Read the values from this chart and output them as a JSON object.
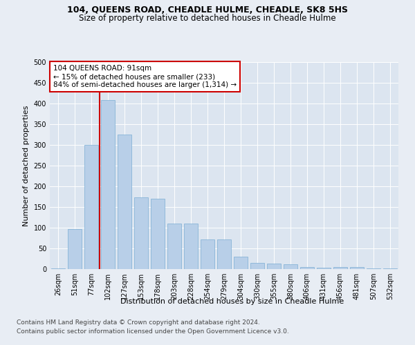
{
  "title1": "104, QUEENS ROAD, CHEADLE HULME, CHEADLE, SK8 5HS",
  "title2": "Size of property relative to detached houses in Cheadle Hulme",
  "xlabel": "Distribution of detached houses by size in Cheadle Hulme",
  "ylabel": "Number of detached properties",
  "bar_labels": [
    "26sqm",
    "51sqm",
    "77sqm",
    "102sqm",
    "127sqm",
    "153sqm",
    "178sqm",
    "203sqm",
    "228sqm",
    "254sqm",
    "279sqm",
    "304sqm",
    "330sqm",
    "355sqm",
    "380sqm",
    "406sqm",
    "431sqm",
    "456sqm",
    "481sqm",
    "507sqm",
    "532sqm"
  ],
  "bar_values": [
    2,
    97,
    300,
    408,
    325,
    173,
    170,
    110,
    110,
    72,
    72,
    30,
    15,
    13,
    12,
    5,
    3,
    5,
    5,
    2,
    2
  ],
  "bar_color": "#b8cfe8",
  "bar_edge_color": "#7aadd4",
  "property_line_bin": 2.5,
  "annotation_line1": "104 QUEENS ROAD: 91sqm",
  "annotation_line2": "← 15% of detached houses are smaller (233)",
  "annotation_line3": "84% of semi-detached houses are larger (1,314) →",
  "annotation_box_color": "#ffffff",
  "annotation_box_edge": "#cc0000",
  "vline_color": "#cc0000",
  "ylim": [
    0,
    500
  ],
  "yticks": [
    0,
    50,
    100,
    150,
    200,
    250,
    300,
    350,
    400,
    450,
    500
  ],
  "footer1": "Contains HM Land Registry data © Crown copyright and database right 2024.",
  "footer2": "Contains public sector information licensed under the Open Government Licence v3.0.",
  "bg_color": "#e8edf4",
  "plot_bg_color": "#dce5f0",
  "grid_color": "#ffffff",
  "title_fontsize": 9,
  "subtitle_fontsize": 8.5,
  "axis_label_fontsize": 8,
  "tick_fontsize": 7,
  "footer_fontsize": 6.5,
  "annot_fontsize": 7.5
}
